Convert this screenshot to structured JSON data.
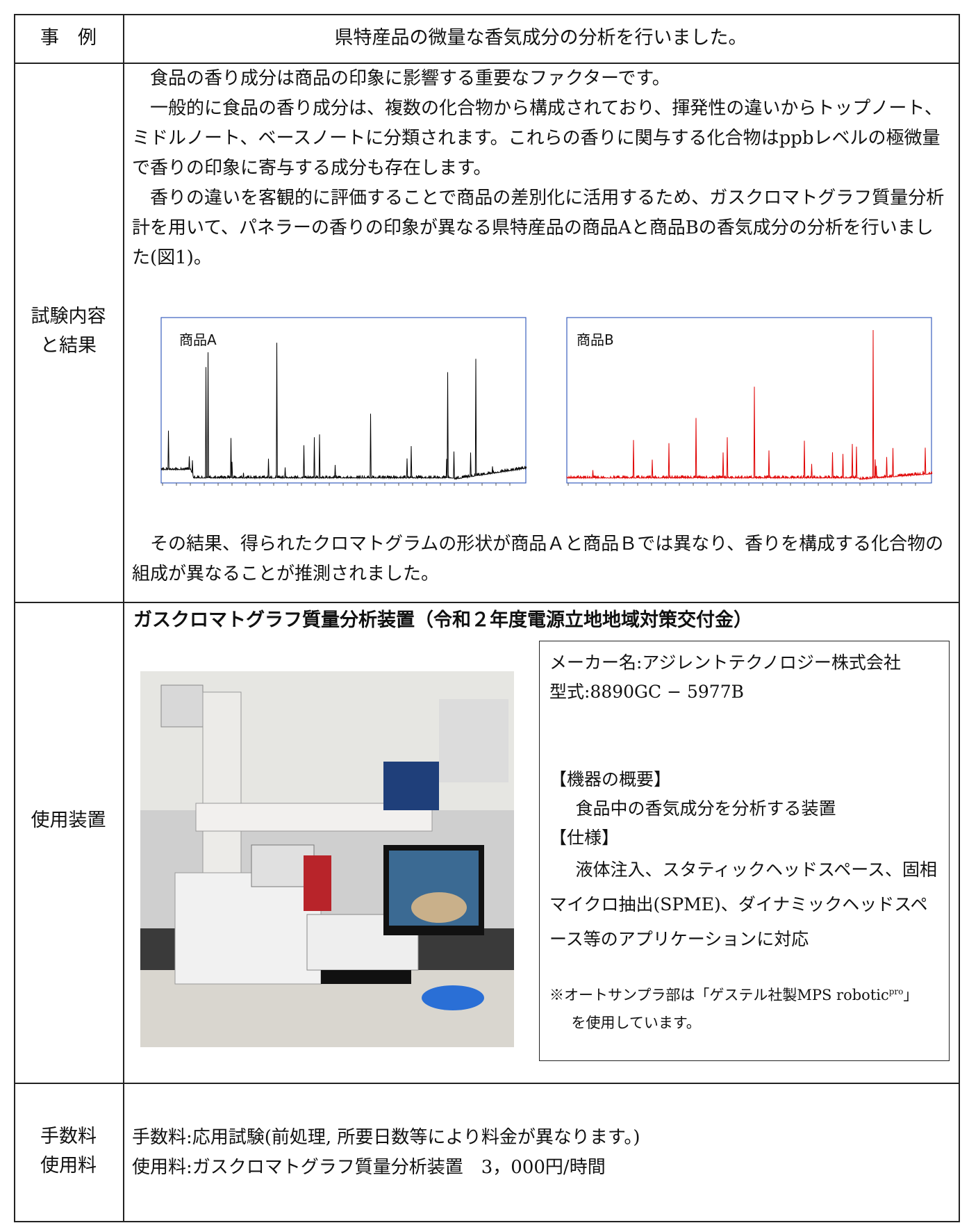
{
  "header": {
    "label": "事　例",
    "title": "県特産品の微量な香気成分の分析を行いました。"
  },
  "results": {
    "label": [
      "試験内容",
      "と結果"
    ],
    "paragraphs": [
      "食品の香り成分は商品の印象に影響する重要なファクターです。",
      "一般的に食品の香り成分は、複数の化合物から構成されており、揮発性の違いからトップノート、ミドルノート、ベースノートに分類されます。これらの香りに関与する化合物はppbレベルの極微量で香りの印象に寄与する成分も存在します。",
      "香りの違いを客観的に評価することで商品の差別化に活用するため、ガスクロマトグラフ質量分析計を用いて、パネラーの香りの印象が異なる県特産品の商品Aと商品Bの香気成分の分析を行いました(図1)。"
    ],
    "figures": [
      {
        "label": "商品A"
      },
      {
        "label": "商品B"
      }
    ],
    "conclusion": "その結果、得られたクロマトグラムの形状が商品Ａと商品Ｂでは異なり、香りを構成する化合物の組成が異なることが推測されました。"
  },
  "equipment": {
    "label": "使用装置",
    "heading": "ガスクロマトグラフ質量分析装置（令和２年度電源立地地域対策交付金）",
    "maker": "メーカー名:アジレントテクノロジー株式会社",
    "model": "型式:8890GC − 5977B",
    "overview_title": "【機器の概要】",
    "overview": "食品中の香気成分を分析する装置",
    "spec_title": "【仕様】",
    "spec": "液体注入、スタティックヘッドスペース、固相マイクロ抽出(SPME)、ダイナミックヘッドスペース等のアプリケーションに対応",
    "note": {
      "before": "※オートサンプラ部は「ゲステル社製MPS robotic",
      "sup": "pro",
      "after": "」",
      "line2": "を使用しています。"
    }
  },
  "fees": {
    "label": [
      "手数料",
      "使用料"
    ],
    "lines": [
      "手数料:応用試験(前処理, 所要日数等により料金が異なります。)",
      "使用料:ガスクロマトグラフ質量分析装置　3，000円/時間"
    ]
  }
}
